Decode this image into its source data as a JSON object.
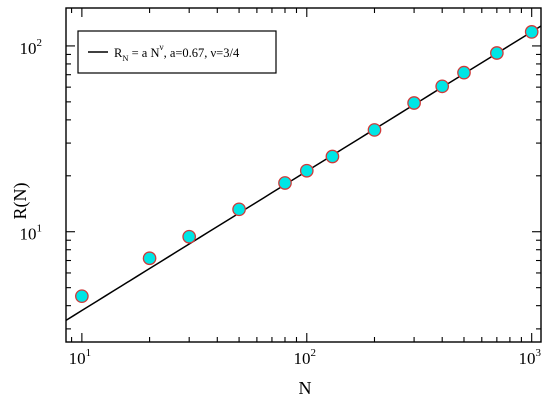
{
  "chart_data": {
    "type": "scatter",
    "xlabel": "N",
    "ylabel": "R(N)",
    "xscale": "log",
    "yscale": "log",
    "xlim": [
      8.5,
      1100
    ],
    "ylim": [
      2.55,
      160
    ],
    "x_major_ticks": [
      {
        "value": 10,
        "base": "10",
        "exp": "1"
      },
      {
        "value": 100,
        "base": "10",
        "exp": "2"
      },
      {
        "value": 1000,
        "base": "10",
        "exp": "3"
      }
    ],
    "y_major_ticks": [
      {
        "value": 10,
        "base": "10",
        "exp": "1"
      },
      {
        "value": 100,
        "base": "10",
        "exp": "2"
      }
    ],
    "grid": false,
    "legend_position": "top-left",
    "series": [
      {
        "type": "scatter",
        "marker_fill": "#00e5e5",
        "marker_edge": "#d03a3a",
        "x": [
          10,
          20,
          30,
          50,
          80,
          100,
          130,
          200,
          300,
          400,
          500,
          700,
          1000
        ],
        "y": [
          4.5,
          7.2,
          9.4,
          13.2,
          18.3,
          21.3,
          25.4,
          35.3,
          49.3,
          60.6,
          71.8,
          91.6,
          119.0
        ]
      },
      {
        "type": "line",
        "color": "#000000",
        "a": 0.67,
        "nu": 0.75,
        "legend": {
          "symbol": "R",
          "subscript": "N",
          "equals": " = a N",
          "superscript": "ν",
          "tail": ",   a=0.67,  ν=3/4"
        }
      }
    ]
  }
}
